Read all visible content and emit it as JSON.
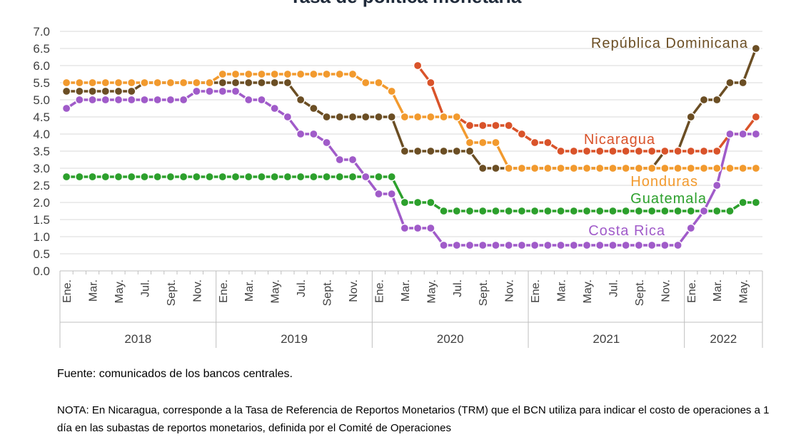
{
  "chart_data": {
    "type": "line",
    "title": "Tasa de política monetaria",
    "ylim": [
      0,
      7
    ],
    "ytick_labels": [
      "0.0",
      "0.5",
      "1.0",
      "1.5",
      "2.0",
      "2.5",
      "3.0",
      "3.5",
      "4.0",
      "4.5",
      "5.0",
      "5.5",
      "6.0",
      "6.5",
      "7.0"
    ],
    "grid": true,
    "x_tick_labels": [
      "Ene.",
      "Mar.",
      "May.",
      "Jul.",
      "Sept.",
      "Nov.",
      "Ene.",
      "Mar.",
      "May.",
      "Jul.",
      "Sept.",
      "Nov.",
      "Ene.",
      "Mar.",
      "May.",
      "Jul.",
      "Sept.",
      "Nov.",
      "Ene.",
      "Mar.",
      "May.",
      "Jul.",
      "Sept.",
      "Nov.",
      "Ene.",
      "Mar.",
      "May."
    ],
    "years": [
      "2018",
      "2019",
      "2020",
      "2021",
      "2022"
    ],
    "x": [
      "2018-01",
      "2018-02",
      "2018-03",
      "2018-04",
      "2018-05",
      "2018-06",
      "2018-07",
      "2018-08",
      "2018-09",
      "2018-10",
      "2018-11",
      "2018-12",
      "2019-01",
      "2019-02",
      "2019-03",
      "2019-04",
      "2019-05",
      "2019-06",
      "2019-07",
      "2019-08",
      "2019-09",
      "2019-10",
      "2019-11",
      "2019-12",
      "2020-01",
      "2020-02",
      "2020-03",
      "2020-04",
      "2020-05",
      "2020-06",
      "2020-07",
      "2020-08",
      "2020-09",
      "2020-10",
      "2020-11",
      "2020-12",
      "2021-01",
      "2021-02",
      "2021-03",
      "2021-04",
      "2021-05",
      "2021-06",
      "2021-07",
      "2021-08",
      "2021-09",
      "2021-10",
      "2021-11",
      "2021-12",
      "2022-01",
      "2022-02",
      "2022-03",
      "2022-04",
      "2022-05",
      "2022-06"
    ],
    "series": [
      {
        "name": "República Dominicana",
        "color": "#6b4e24",
        "values": [
          5.25,
          5.25,
          5.25,
          5.25,
          5.25,
          5.25,
          5.5,
          5.5,
          5.5,
          5.5,
          5.5,
          5.5,
          5.5,
          5.5,
          5.5,
          5.5,
          5.5,
          5.5,
          5.0,
          4.75,
          4.5,
          4.5,
          4.5,
          4.5,
          4.5,
          4.5,
          3.5,
          3.5,
          3.5,
          3.5,
          3.5,
          3.5,
          3.0,
          3.0,
          3.0,
          3.0,
          3.0,
          3.0,
          3.0,
          3.0,
          3.0,
          3.0,
          3.0,
          3.0,
          3.0,
          3.0,
          3.5,
          3.5,
          4.5,
          5.0,
          5.0,
          5.5,
          5.5,
          6.5
        ]
      },
      {
        "name": "Nicaragua",
        "color": "#d9532a",
        "values": [
          null,
          null,
          null,
          null,
          null,
          null,
          null,
          null,
          null,
          null,
          null,
          null,
          null,
          null,
          null,
          null,
          null,
          null,
          null,
          null,
          null,
          null,
          null,
          null,
          null,
          null,
          null,
          6.0,
          5.5,
          4.5,
          4.5,
          4.25,
          4.25,
          4.25,
          4.25,
          4.0,
          3.75,
          3.75,
          3.5,
          3.5,
          3.5,
          3.5,
          3.5,
          3.5,
          3.5,
          3.5,
          3.5,
          3.5,
          3.5,
          3.5,
          3.5,
          4.0,
          4.0,
          4.5
        ]
      },
      {
        "name": "Honduras",
        "color": "#f29a2e",
        "values": [
          5.5,
          5.5,
          5.5,
          5.5,
          5.5,
          5.5,
          5.5,
          5.5,
          5.5,
          5.5,
          5.5,
          5.5,
          5.75,
          5.75,
          5.75,
          5.75,
          5.75,
          5.75,
          5.75,
          5.75,
          5.75,
          5.75,
          5.75,
          5.5,
          5.5,
          5.25,
          4.5,
          4.5,
          4.5,
          4.5,
          4.5,
          3.75,
          3.75,
          3.75,
          3.0,
          3.0,
          3.0,
          3.0,
          3.0,
          3.0,
          3.0,
          3.0,
          3.0,
          3.0,
          3.0,
          3.0,
          3.0,
          3.0,
          3.0,
          3.0,
          3.0,
          3.0,
          3.0,
          3.0
        ]
      },
      {
        "name": "Guatemala",
        "color": "#2ca02c",
        "values": [
          2.75,
          2.75,
          2.75,
          2.75,
          2.75,
          2.75,
          2.75,
          2.75,
          2.75,
          2.75,
          2.75,
          2.75,
          2.75,
          2.75,
          2.75,
          2.75,
          2.75,
          2.75,
          2.75,
          2.75,
          2.75,
          2.75,
          2.75,
          2.75,
          2.75,
          2.75,
          2.0,
          2.0,
          2.0,
          1.75,
          1.75,
          1.75,
          1.75,
          1.75,
          1.75,
          1.75,
          1.75,
          1.75,
          1.75,
          1.75,
          1.75,
          1.75,
          1.75,
          1.75,
          1.75,
          1.75,
          1.75,
          1.75,
          1.75,
          1.75,
          1.75,
          1.75,
          2.0,
          2.0
        ]
      },
      {
        "name": "Costa Rica",
        "color": "#a05bc9",
        "values": [
          4.75,
          5.0,
          5.0,
          5.0,
          5.0,
          5.0,
          5.0,
          5.0,
          5.0,
          5.0,
          5.25,
          5.25,
          5.25,
          5.25,
          5.0,
          5.0,
          4.75,
          4.5,
          4.0,
          4.0,
          3.75,
          3.25,
          3.25,
          2.75,
          2.25,
          2.25,
          1.25,
          1.25,
          1.25,
          0.75,
          0.75,
          0.75,
          0.75,
          0.75,
          0.75,
          0.75,
          0.75,
          0.75,
          0.75,
          0.75,
          0.75,
          0.75,
          0.75,
          0.75,
          0.75,
          0.75,
          0.75,
          0.75,
          1.25,
          1.75,
          2.5,
          4.0,
          4.0,
          4.0
        ]
      }
    ]
  },
  "source_text": "Fuente: comunicados de los bancos centrales.",
  "note_text": "NOTA: En Nicaragua, corresponde a la Tasa de Referencia de Reportos Monetarios (TRM) que el BCN utiliza para indicar el costo de operaciones a 1 día en las subastas de reportos monetarios, definida por el Comité de Operaciones"
}
